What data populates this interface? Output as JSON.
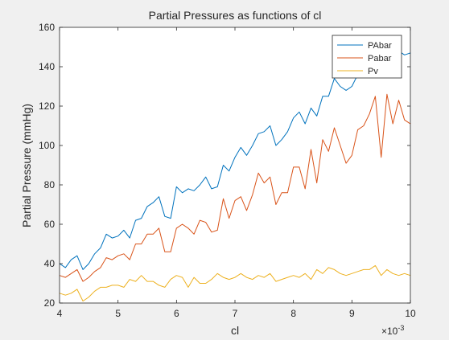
{
  "figure": {
    "background": "#f0f0f0",
    "axes_background": "#ffffff"
  },
  "chart_data": {
    "type": "line",
    "title": "Partial Pressures as functions of cl",
    "xlabel": "cl",
    "ylabel": "Partial Pressure (mmHg)",
    "x_exponent_label": "×10",
    "x_exponent_power": "-3",
    "xlim": [
      4,
      10
    ],
    "ylim": [
      20,
      160
    ],
    "x_ticks": [
      4,
      5,
      6,
      7,
      8,
      9,
      10
    ],
    "y_ticks": [
      20,
      40,
      60,
      80,
      100,
      120,
      140,
      160
    ],
    "grid": false,
    "legend_position": "top-right",
    "x": [
      4.0,
      4.1,
      4.2,
      4.3,
      4.4,
      4.5,
      4.6,
      4.7,
      4.8,
      4.9,
      5.0,
      5.1,
      5.2,
      5.3,
      5.4,
      5.5,
      5.6,
      5.7,
      5.8,
      5.9,
      6.0,
      6.1,
      6.2,
      6.3,
      6.4,
      6.5,
      6.6,
      6.7,
      6.8,
      6.9,
      7.0,
      7.1,
      7.2,
      7.3,
      7.4,
      7.5,
      7.6,
      7.7,
      7.8,
      7.9,
      8.0,
      8.1,
      8.2,
      8.3,
      8.4,
      8.5,
      8.6,
      8.7,
      8.8,
      8.9,
      9.0,
      9.1,
      9.2,
      9.3,
      9.4,
      9.5,
      9.6,
      9.7,
      9.8,
      9.9,
      10.0
    ],
    "series": [
      {
        "name": "PAbar",
        "color": "#0072bd",
        "values": [
          40,
          38,
          42,
          44,
          37,
          40,
          45,
          48,
          55,
          53,
          54,
          57,
          53,
          62,
          63,
          69,
          71,
          74,
          64,
          63,
          79,
          76,
          78,
          77,
          80,
          84,
          78,
          79,
          90,
          87,
          94,
          99,
          95,
          100,
          106,
          107,
          110,
          100,
          103,
          107,
          114,
          117,
          111,
          119,
          115,
          125,
          125,
          134,
          130,
          128,
          130,
          136,
          140,
          138,
          142,
          145,
          142,
          146,
          148,
          146,
          147
        ]
      },
      {
        "name": "Pabar",
        "color": "#d95319",
        "values": [
          34,
          33,
          35,
          37,
          31,
          33,
          36,
          38,
          43,
          42,
          44,
          45,
          42,
          50,
          50,
          55,
          55,
          58,
          46,
          46,
          58,
          60,
          58,
          55,
          62,
          61,
          56,
          57,
          73,
          63,
          72,
          74,
          67,
          75,
          86,
          81,
          84,
          70,
          76,
          76,
          89,
          89,
          78,
          98,
          81,
          103,
          97,
          109,
          100,
          91,
          95,
          108,
          110,
          116,
          125,
          94,
          126,
          111,
          123,
          113,
          111
        ]
      },
      {
        "name": "Pv",
        "color": "#edb120",
        "values": [
          25,
          24,
          25,
          27,
          21,
          23,
          26,
          28,
          28,
          29,
          29,
          28,
          32,
          31,
          34,
          31,
          31,
          29,
          28,
          32,
          34,
          33,
          28,
          33,
          30,
          30,
          32,
          35,
          33,
          32,
          33,
          35,
          33,
          32,
          34,
          33,
          35,
          31,
          32,
          33,
          34,
          33,
          35,
          32,
          37,
          35,
          38,
          37,
          35,
          34,
          35,
          36,
          37,
          37,
          39,
          34,
          37,
          35,
          34,
          35,
          34
        ]
      }
    ]
  }
}
